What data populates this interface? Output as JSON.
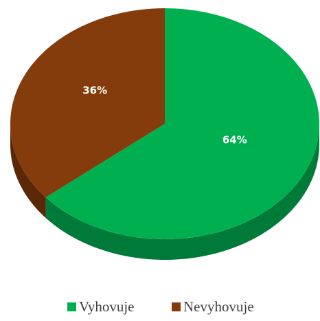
{
  "chart_data": {
    "type": "pie",
    "categories": [
      "Vyhovuje",
      "Nevyhovuje"
    ],
    "values": [
      64,
      36
    ],
    "value_labels": [
      "64%",
      "36%"
    ],
    "colors": [
      "#00b050",
      "#843c0c"
    ],
    "side_colors": [
      "#007a38",
      "#5a2808"
    ],
    "legend": "bottom"
  }
}
